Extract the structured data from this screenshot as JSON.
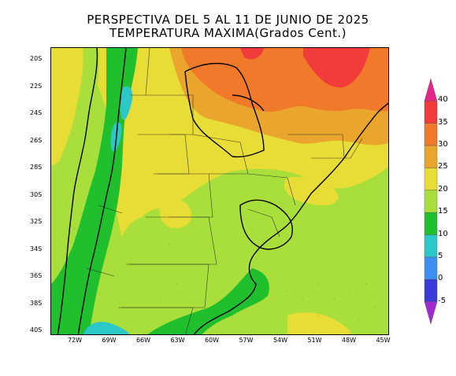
{
  "title": {
    "line1": "PERSPECTIVA DEL 5 AL 11 DE JUNIO DE 2025",
    "line2": "TEMPERATURA MAXIMA(Grados Cent.)"
  },
  "axes": {
    "latitude_labels": [
      "20S",
      "22S",
      "24S",
      "26S",
      "28S",
      "30S",
      "32S",
      "34S",
      "36S",
      "38S",
      "40S"
    ],
    "longitude_labels": [
      "72W",
      "69W",
      "66W",
      "63W",
      "60W",
      "57W",
      "54W",
      "51W",
      "48W",
      "45W"
    ]
  },
  "colorbar": {
    "labels": [
      "40",
      "35",
      "30",
      "25",
      "20",
      "15",
      "10",
      "5",
      "0",
      "-5"
    ],
    "colors": [
      "#e6258a",
      "#f23c3c",
      "#f07a2a",
      "#e9a52c",
      "#e8dc36",
      "#a8df3a",
      "#1fbf2e",
      "#2cc7c7",
      "#3d8ff2",
      "#3a3ad8",
      "#a22ad2"
    ]
  },
  "map": {
    "region": "Argentina / Paraguay / Uruguay / Southern Brazil",
    "colors": {
      "ocean_light": "#e8dc36",
      "green_light": "#a8df3a",
      "green_dark": "#1fbf2e",
      "cyan": "#2cc7c7",
      "yellow": "#e8dc36",
      "gold": "#e9a52c",
      "orange": "#f07a2a",
      "red": "#f23c3c"
    }
  }
}
